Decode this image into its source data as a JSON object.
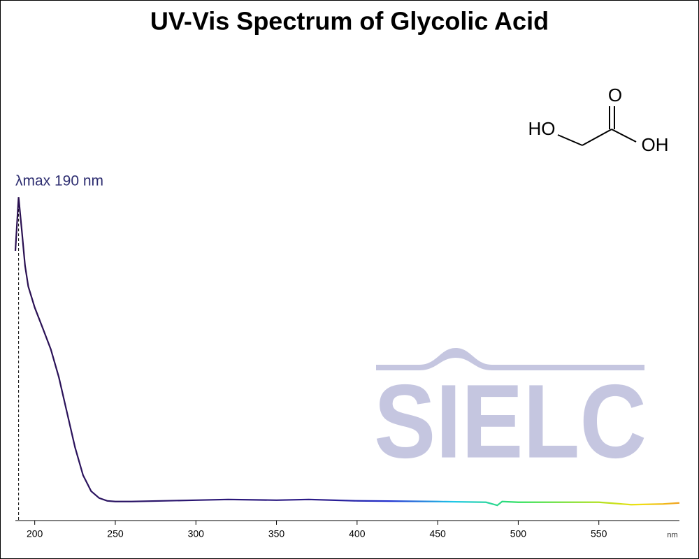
{
  "chart_data": {
    "type": "line",
    "title": "UV-Vis Spectrum of Glycolic Acid",
    "x_label": "nm",
    "xlim": [
      188,
      600
    ],
    "ylim": [
      0,
      1
    ],
    "xticks": [
      200,
      250,
      300,
      350,
      400,
      450,
      500,
      550
    ],
    "series": [
      {
        "name": "Glycolic Acid",
        "x": [
          188,
          190,
          192,
          194,
          196,
          200,
          205,
          210,
          215,
          220,
          225,
          230,
          235,
          240,
          245,
          250,
          260,
          300,
          320,
          350,
          370,
          400,
          450,
          480,
          487,
          490,
          500,
          550,
          570,
          590,
          600
        ],
        "values": [
          0.78,
          0.935,
          0.838,
          0.737,
          0.677,
          0.616,
          0.556,
          0.495,
          0.414,
          0.313,
          0.212,
          0.131,
          0.085,
          0.065,
          0.057,
          0.055,
          0.055,
          0.059,
          0.061,
          0.059,
          0.061,
          0.057,
          0.055,
          0.053,
          0.044,
          0.055,
          0.053,
          0.053,
          0.046,
          0.048,
          0.051
        ],
        "color_stops": [
          {
            "x": 188,
            "color": "#2a1050"
          },
          {
            "x": 380,
            "color": "#2a1a8a"
          },
          {
            "x": 420,
            "color": "#1f2fd0"
          },
          {
            "x": 460,
            "color": "#20c8e8"
          },
          {
            "x": 500,
            "color": "#30e060"
          },
          {
            "x": 550,
            "color": "#b0e020"
          },
          {
            "x": 575,
            "color": "#f0e010"
          },
          {
            "x": 600,
            "color": "#f0a020"
          }
        ]
      }
    ],
    "annotation": {
      "text": "λmax  190 nm",
      "x": 190
    },
    "structure_labels": [
      "HO",
      "O",
      "OH"
    ],
    "watermark": "SIELC"
  }
}
